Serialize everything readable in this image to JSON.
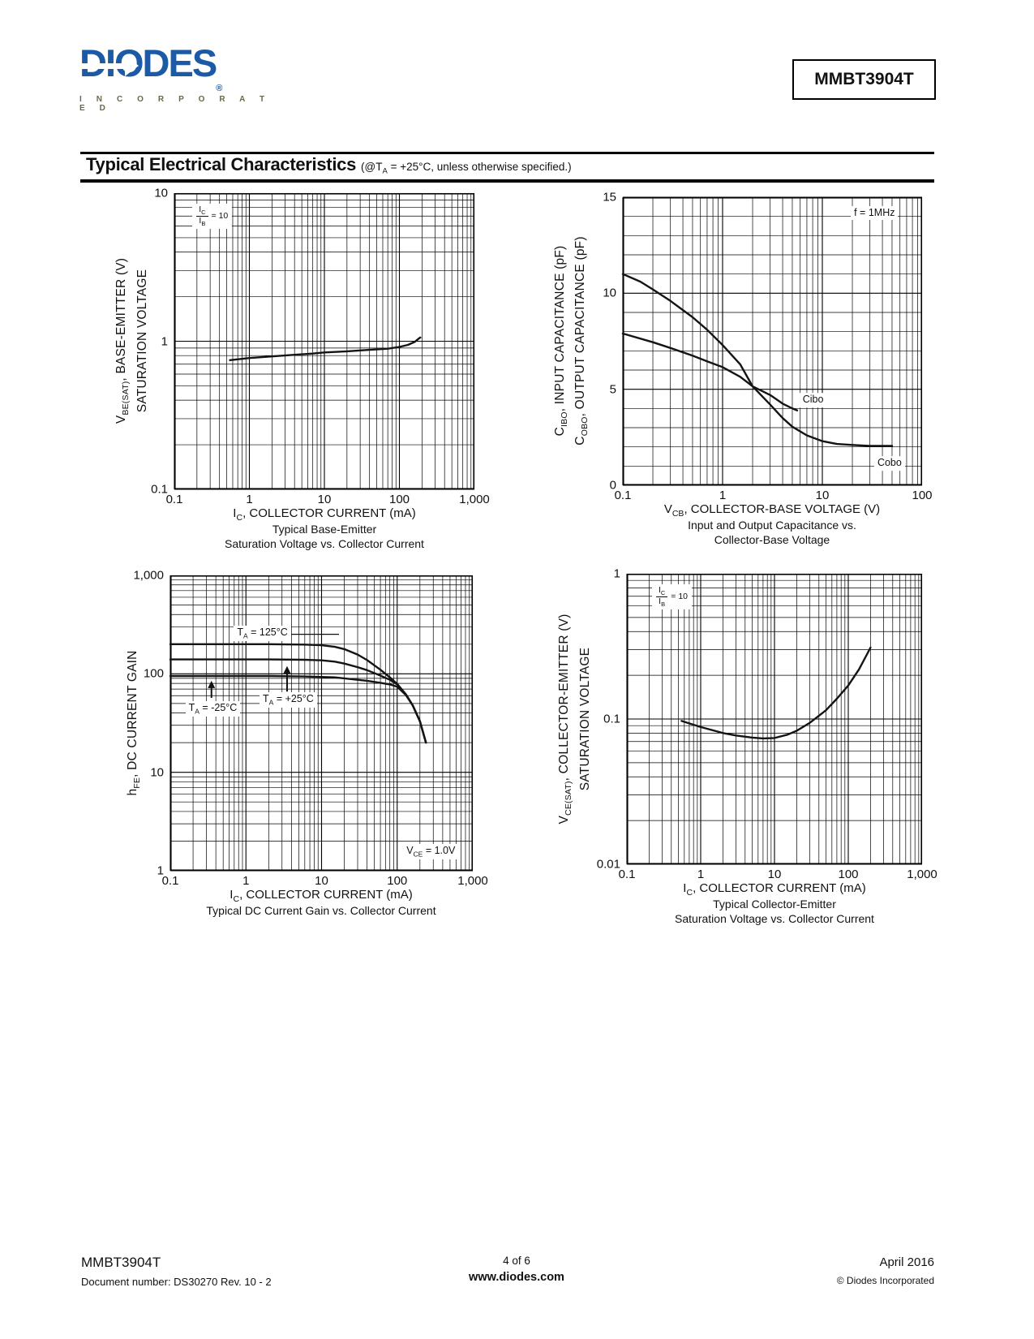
{
  "logo": {
    "brand": "DIODES",
    "registered": "®",
    "incorporated": "I N C O R P O R A T E D",
    "brand_color": "#1a5aa7",
    "incorporated_color": "#6b684a"
  },
  "header": {
    "part_number": "MMBT3904T",
    "section_title": "Typical Electrical Characteristics",
    "section_subtitle": {
      "pre": "(@T",
      "sub": "A",
      "post": " = +25°C, unless otherwise specified.)"
    }
  },
  "footer": {
    "part_number": "MMBT3904T",
    "document_number": "Document number: DS30270  Rev. 10 - 2",
    "page_indicator": "4 of 6",
    "website": "www.diodes.com",
    "date": "April 2016",
    "copyright": "© Diodes Incorporated"
  },
  "chart_data": [
    {
      "type": "line",
      "title_lines": [
        "Typical Base-Emitter",
        "Saturation Voltage vs. Collector Current"
      ],
      "xlabel": {
        "pre": "I",
        "sub": "C",
        "post": ", COLLECTOR CURRENT (mA)"
      },
      "ylabel_line1": {
        "pre": "V",
        "sub": "BE(SAT)",
        "post": ", BASE-EMITTER (V)"
      },
      "ylabel_line2": {
        "pre": "SATURATION VOLTAGE",
        "sub": "",
        "post": ""
      },
      "x_scale": "log",
      "x_range": [
        0.1,
        1000
      ],
      "y_scale": "log",
      "y_range": [
        0.1,
        10
      ],
      "xticks": {
        "values": [
          0.1,
          1,
          10,
          100,
          1000
        ],
        "labels": [
          "0.1",
          "1",
          "10",
          "100",
          "1,000"
        ]
      },
      "yticks": {
        "values": [
          0.1,
          1,
          10
        ],
        "labels": [
          "0.1",
          "1",
          "10"
        ]
      },
      "annotations": {
        "frac": {
          "num": "I",
          "num_sub": "C",
          "den": "I",
          "den_sub": "B",
          "eq": "= 10"
        }
      },
      "series": [
        {
          "name": "VBE(SAT)",
          "points": [
            [
              0.55,
              0.745
            ],
            [
              1,
              0.77
            ],
            [
              2,
              0.79
            ],
            [
              4,
              0.81
            ],
            [
              7,
              0.825
            ],
            [
              10,
              0.84
            ],
            [
              20,
              0.855
            ],
            [
              40,
              0.875
            ],
            [
              70,
              0.89
            ],
            [
              100,
              0.915
            ],
            [
              130,
              0.945
            ],
            [
              160,
              0.99
            ],
            [
              180,
              1.04
            ],
            [
              190,
              1.06
            ]
          ]
        }
      ]
    },
    {
      "type": "line",
      "title_lines": [
        "Input and Output Capacitance vs.",
        "Collector-Base Voltage"
      ],
      "xlabel": {
        "pre": "V",
        "sub": "CB",
        "post": ", COLLECTOR-BASE VOLTAGE (V)"
      },
      "ylabel_line1": {
        "pre": "C",
        "sub": "IBO",
        "post": ", INPUT CAPACITANCE (pF)"
      },
      "ylabel_line2": {
        "pre": "C",
        "sub": "OBO",
        "post": ", OUTPUT CAPACITANCE (pF)"
      },
      "x_scale": "log",
      "x_range": [
        0.1,
        100
      ],
      "y_scale": "linear",
      "y_range": [
        0,
        15
      ],
      "xticks": {
        "values": [
          0.1,
          1,
          10,
          100
        ],
        "labels": [
          "0.1",
          "1",
          "10",
          "100"
        ]
      },
      "yticks": {
        "values": [
          0,
          5,
          10,
          15
        ],
        "labels": [
          "0",
          "5",
          "10",
          "15"
        ]
      },
      "annotations": {
        "freq": "f = 1MHz",
        "cibo": "Cibo",
        "cobo": "Cobo"
      },
      "series": [
        {
          "name": "Cobo",
          "points": [
            [
              0.1,
              11
            ],
            [
              0.15,
              10.6
            ],
            [
              0.2,
              10.2
            ],
            [
              0.3,
              9.6
            ],
            [
              0.5,
              8.75
            ],
            [
              0.7,
              8.1
            ],
            [
              1,
              7.3
            ],
            [
              1.5,
              6.3
            ],
            [
              2,
              5.15
            ],
            [
              3,
              4.2
            ],
            [
              4,
              3.5
            ],
            [
              5,
              3.05
            ],
            [
              7,
              2.6
            ],
            [
              10,
              2.3
            ],
            [
              14,
              2.15
            ],
            [
              20,
              2.1
            ],
            [
              30,
              2.05
            ],
            [
              50,
              2.05
            ]
          ]
        },
        {
          "name": "Cibo",
          "points": [
            [
              0.1,
              7.9
            ],
            [
              0.2,
              7.45
            ],
            [
              0.3,
              7.15
            ],
            [
              0.5,
              6.75
            ],
            [
              0.7,
              6.45
            ],
            [
              1,
              6.15
            ],
            [
              1.5,
              5.65
            ],
            [
              2,
              5.15
            ],
            [
              3,
              4.7
            ],
            [
              4,
              4.25
            ],
            [
              5,
              4.0
            ],
            [
              5.6,
              3.9
            ]
          ]
        }
      ]
    },
    {
      "type": "line",
      "title_lines": [
        "Typical DC Current Gain vs. Collector Current"
      ],
      "xlabel": {
        "pre": "I",
        "sub": "C",
        "post": ", COLLECTOR CURRENT (mA)"
      },
      "ylabel_line1": {
        "pre": "h",
        "sub": "FE",
        "post": ", DC CURRENT GAIN"
      },
      "ylabel_line2": {
        "pre": "",
        "sub": "",
        "post": ""
      },
      "x_scale": "log",
      "x_range": [
        0.1,
        1000
      ],
      "y_scale": "log",
      "y_range": [
        1,
        1000
      ],
      "xticks": {
        "values": [
          0.1,
          1,
          10,
          100,
          1000
        ],
        "labels": [
          "0.1",
          "1",
          "10",
          "100",
          "1,000"
        ]
      },
      "yticks": {
        "values": [
          1,
          10,
          100,
          1000
        ],
        "labels": [
          "1",
          "10",
          "100",
          "1,000"
        ]
      },
      "annotations": {
        "t125": {
          "pre": "T",
          "sub": "A",
          "post": " = 125°C"
        },
        "t25": {
          "pre": "T",
          "sub": "A",
          "post": " = +25°C"
        },
        "tm25": {
          "pre": "T",
          "sub": "A",
          "post": " = -25°C"
        },
        "vce": {
          "pre": "V",
          "sub": "CE",
          "post": " = 1.0V"
        }
      },
      "arrows": [
        {
          "x": 0.35,
          "y_from": 57,
          "y_to": 85
        },
        {
          "x": 3.5,
          "y_from": 66,
          "y_to": 120
        }
      ],
      "leaders": [
        [
          [
            3.7,
            252
          ],
          [
            17,
            252
          ]
        ]
      ],
      "series": [
        {
          "name": "TA = 125°C",
          "points": [
            [
              0.1,
              200
            ],
            [
              2,
              200
            ],
            [
              6,
              198
            ],
            [
              10,
              195
            ],
            [
              15,
              188
            ],
            [
              20,
              178
            ],
            [
              30,
              157
            ],
            [
              40,
              138
            ],
            [
              60,
              110
            ],
            [
              80,
              92
            ],
            [
              100,
              79
            ],
            [
              130,
              62
            ],
            [
              160,
              48
            ],
            [
              200,
              33
            ],
            [
              240,
              20
            ]
          ]
        },
        {
          "name": "TA = +25°C",
          "points": [
            [
              0.1,
              140
            ],
            [
              2,
              140
            ],
            [
              6,
              139
            ],
            [
              10,
              137
            ],
            [
              15,
              133
            ],
            [
              20,
              127
            ],
            [
              30,
              117
            ],
            [
              40,
              109
            ],
            [
              60,
              96
            ],
            [
              80,
              87
            ],
            [
              100,
              78
            ],
            [
              130,
              62
            ],
            [
              160,
              48
            ],
            [
              200,
              33
            ],
            [
              240,
              20
            ]
          ]
        },
        {
          "name": "TA = -25°C",
          "points": [
            [
              0.1,
              95
            ],
            [
              2,
              95
            ],
            [
              6,
              94
            ],
            [
              10,
              93
            ],
            [
              15,
              92
            ],
            [
              20,
              90
            ],
            [
              30,
              87
            ],
            [
              40,
              85
            ],
            [
              60,
              81
            ],
            [
              80,
              78
            ],
            [
              100,
              74
            ],
            [
              130,
              61
            ],
            [
              160,
              48
            ],
            [
              200,
              33
            ],
            [
              240,
              20
            ]
          ]
        }
      ]
    },
    {
      "type": "line",
      "title_lines": [
        "Typical Collector-Emitter",
        "Saturation Voltage vs. Collector Current"
      ],
      "xlabel": {
        "pre": "I",
        "sub": "C",
        "post": ", COLLECTOR CURRENT (mA)"
      },
      "ylabel_line1": {
        "pre": "V",
        "sub": "CE(SAT)",
        "post": ", COLLECTOR-EMITTER (V)"
      },
      "ylabel_line2": {
        "pre": "SATURATION VOLTAGE",
        "sub": "",
        "post": ""
      },
      "x_scale": "log",
      "x_range": [
        0.1,
        1000
      ],
      "y_scale": "log",
      "y_range": [
        0.01,
        1
      ],
      "xticks": {
        "values": [
          0.1,
          1,
          10,
          100,
          1000
        ],
        "labels": [
          "0.1",
          "1",
          "10",
          "100",
          "1,000"
        ]
      },
      "yticks": {
        "values": [
          0.01,
          0.1,
          1
        ],
        "labels": [
          "0.01",
          "0.1",
          "1"
        ]
      },
      "annotations": {
        "frac": {
          "num": "I",
          "num_sub": "C",
          "den": "I",
          "den_sub": "B",
          "eq": "= 10"
        }
      },
      "series": [
        {
          "name": "VCE(SAT)",
          "points": [
            [
              0.55,
              0.097
            ],
            [
              1,
              0.088
            ],
            [
              2,
              0.08
            ],
            [
              3,
              0.077
            ],
            [
              5,
              0.0745
            ],
            [
              7,
              0.0735
            ],
            [
              10,
              0.074
            ],
            [
              15,
              0.078
            ],
            [
              20,
              0.083
            ],
            [
              30,
              0.094
            ],
            [
              50,
              0.115
            ],
            [
              70,
              0.138
            ],
            [
              100,
              0.17
            ],
            [
              140,
              0.22
            ],
            [
              180,
              0.28
            ],
            [
              200,
              0.31
            ]
          ]
        }
      ]
    }
  ]
}
